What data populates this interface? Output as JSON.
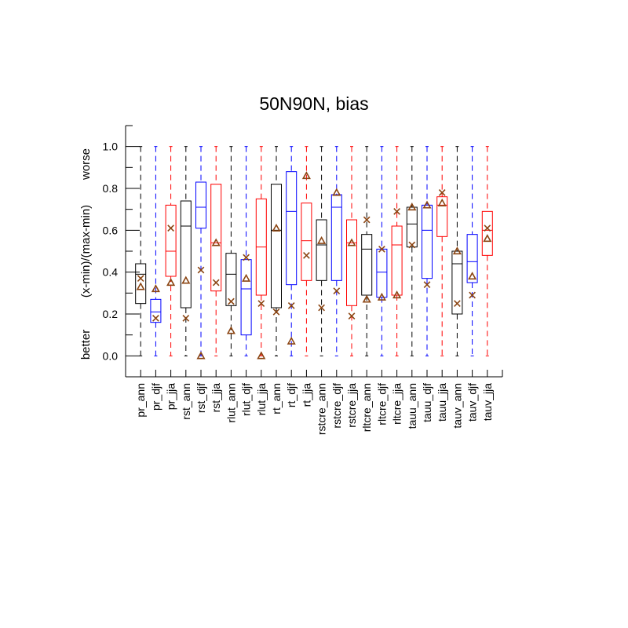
{
  "chart_data": {
    "type": "boxplot",
    "title": "50N90N, bias",
    "ylabel": "(x-min)/(max-min)",
    "ylabel_top": "worse",
    "ylabel_bottom": "better",
    "ylim": [
      -0.1,
      1.1
    ],
    "yticks": [
      0.0,
      0.2,
      0.4,
      0.6,
      0.8,
      1.0
    ],
    "ytick_labels": [
      "0.0",
      "0.2",
      "0.4",
      "0.6",
      "0.8",
      "1.0"
    ],
    "colors": {
      "ann": "#000000",
      "djf": "#0000ff",
      "jja": "#ff0000",
      "marker": "#8b4513"
    },
    "markers": {
      "mean": "triangle",
      "reference": "x"
    },
    "categories": [
      "pr_ann",
      "pr_djf",
      "pr_jja",
      "rst_ann",
      "rst_djf",
      "rst_jja",
      "rlut_ann",
      "rlut_djf",
      "rlut_jja",
      "rt_ann",
      "rt_djf",
      "rt_jja",
      "rstcre_ann",
      "rstcre_djf",
      "rstcre_jja",
      "rltcre_ann",
      "rltcre_djf",
      "rltcre_jja",
      "tauu_ann",
      "tauu_djf",
      "tauu_jja",
      "tauv_ann",
      "tauv_djf",
      "tauv_jja"
    ],
    "boxes": [
      {
        "season": "ann",
        "whisker_low": 0.0,
        "q1": 0.25,
        "median": 0.39,
        "q3": 0.44,
        "whisker_high": 1.0,
        "mean": 0.33,
        "reference": 0.37
      },
      {
        "season": "djf",
        "whisker_low": 0.0,
        "q1": 0.16,
        "median": 0.21,
        "q3": 0.27,
        "whisker_high": 1.0,
        "mean": 0.32,
        "reference": 0.18
      },
      {
        "season": "jja",
        "whisker_low": 0.0,
        "q1": 0.38,
        "median": 0.5,
        "q3": 0.72,
        "whisker_high": 1.0,
        "mean": 0.35,
        "reference": 0.61
      },
      {
        "season": "ann",
        "whisker_low": 0.0,
        "q1": 0.23,
        "median": 0.62,
        "q3": 0.74,
        "whisker_high": 1.0,
        "mean": 0.36,
        "reference": 0.18
      },
      {
        "season": "djf",
        "whisker_low": 0.0,
        "q1": 0.61,
        "median": 0.71,
        "q3": 0.83,
        "whisker_high": 1.0,
        "mean": 0.0,
        "reference": 0.41
      },
      {
        "season": "jja",
        "whisker_low": 0.0,
        "q1": 0.31,
        "median": 0.54,
        "q3": 0.82,
        "whisker_high": 1.0,
        "mean": 0.54,
        "reference": 0.35
      },
      {
        "season": "ann",
        "whisker_low": 0.0,
        "q1": 0.24,
        "median": 0.39,
        "q3": 0.49,
        "whisker_high": 1.0,
        "mean": 0.12,
        "reference": 0.26
      },
      {
        "season": "djf",
        "whisker_low": 0.0,
        "q1": 0.1,
        "median": 0.32,
        "q3": 0.46,
        "whisker_high": 1.0,
        "mean": 0.37,
        "reference": 0.47
      },
      {
        "season": "jja",
        "whisker_low": 0.0,
        "q1": 0.29,
        "median": 0.52,
        "q3": 0.75,
        "whisker_high": 1.0,
        "mean": 0.0,
        "reference": 0.25
      },
      {
        "season": "ann",
        "whisker_low": 0.0,
        "q1": 0.23,
        "median": 0.6,
        "q3": 0.82,
        "whisker_high": 1.0,
        "mean": 0.61,
        "reference": 0.21
      },
      {
        "season": "djf",
        "whisker_low": 0.0,
        "q1": 0.34,
        "median": 0.69,
        "q3": 0.88,
        "whisker_high": 1.0,
        "mean": 0.07,
        "reference": 0.24
      },
      {
        "season": "jja",
        "whisker_low": 0.0,
        "q1": 0.36,
        "median": 0.55,
        "q3": 0.73,
        "whisker_high": 1.0,
        "mean": 0.86,
        "reference": 0.48
      },
      {
        "season": "ann",
        "whisker_low": 0.0,
        "q1": 0.36,
        "median": 0.53,
        "q3": 0.65,
        "whisker_high": 1.0,
        "mean": 0.55,
        "reference": 0.23
      },
      {
        "season": "djf",
        "whisker_low": 0.0,
        "q1": 0.36,
        "median": 0.71,
        "q3": 0.77,
        "whisker_high": 1.0,
        "mean": 0.78,
        "reference": 0.31
      },
      {
        "season": "jja",
        "whisker_low": 0.0,
        "q1": 0.24,
        "median": 0.54,
        "q3": 0.65,
        "whisker_high": 1.0,
        "mean": 0.54,
        "reference": 0.19
      },
      {
        "season": "ann",
        "whisker_low": 0.0,
        "q1": 0.29,
        "median": 0.51,
        "q3": 0.58,
        "whisker_high": 1.0,
        "mean": 0.27,
        "reference": 0.65
      },
      {
        "season": "djf",
        "whisker_low": 0.0,
        "q1": 0.28,
        "median": 0.4,
        "q3": 0.51,
        "whisker_high": 1.0,
        "mean": 0.28,
        "reference": 0.51
      },
      {
        "season": "jja",
        "whisker_low": 0.0,
        "q1": 0.29,
        "median": 0.53,
        "q3": 0.62,
        "whisker_high": 1.0,
        "mean": 0.29,
        "reference": 0.69
      },
      {
        "season": "ann",
        "whisker_low": 0.0,
        "q1": 0.52,
        "median": 0.63,
        "q3": 0.71,
        "whisker_high": 1.0,
        "mean": 0.71,
        "reference": 0.53
      },
      {
        "season": "djf",
        "whisker_low": 0.0,
        "q1": 0.37,
        "median": 0.6,
        "q3": 0.72,
        "whisker_high": 1.0,
        "mean": 0.72,
        "reference": 0.34
      },
      {
        "season": "jja",
        "whisker_low": 0.0,
        "q1": 0.57,
        "median": 0.72,
        "q3": 0.76,
        "whisker_high": 1.0,
        "mean": 0.73,
        "reference": 0.78
      },
      {
        "season": "ann",
        "whisker_low": 0.0,
        "q1": 0.2,
        "median": 0.44,
        "q3": 0.5,
        "whisker_high": 1.0,
        "mean": 0.5,
        "reference": 0.25
      },
      {
        "season": "djf",
        "whisker_low": 0.0,
        "q1": 0.35,
        "median": 0.45,
        "q3": 0.58,
        "whisker_high": 1.0,
        "mean": 0.38,
        "reference": 0.29
      },
      {
        "season": "jja",
        "whisker_low": 0.0,
        "q1": 0.48,
        "median": 0.6,
        "q3": 0.69,
        "whisker_high": 1.0,
        "mean": 0.56,
        "reference": 0.61
      }
    ]
  }
}
